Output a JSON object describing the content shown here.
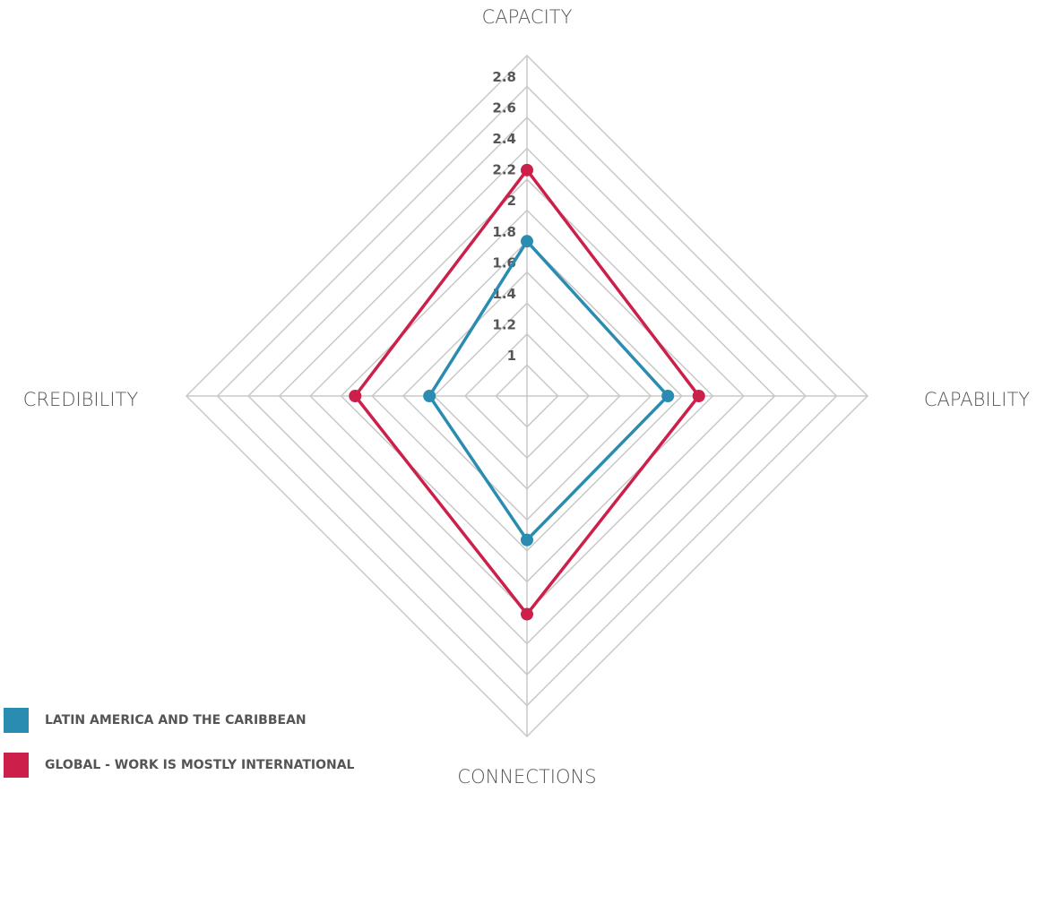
{
  "chart_data": {
    "type": "radar",
    "categories": [
      "CAPACITY",
      "CAPABILITY",
      "CONNECTIONS",
      "CREDIBILITY"
    ],
    "series": [
      {
        "name": "LATIN AMERICA AND THE CARIBBEAN",
        "color": "#2a8cb0",
        "values": [
          1.8,
          1.71,
          1.73,
          1.43
        ]
      },
      {
        "name": "GLOBAL - WORK IS MOSTLY INTERNATIONAL",
        "color": "#cc1f4a",
        "values": [
          2.26,
          1.91,
          2.21,
          1.91
        ]
      }
    ],
    "ylim": [
      0.8,
      3.0
    ],
    "yticks": [
      1,
      1.2,
      1.4,
      1.6,
      1.8,
      2,
      2.2,
      2.4,
      2.6,
      2.8
    ],
    "grid": true,
    "legend": "bottom-left"
  }
}
